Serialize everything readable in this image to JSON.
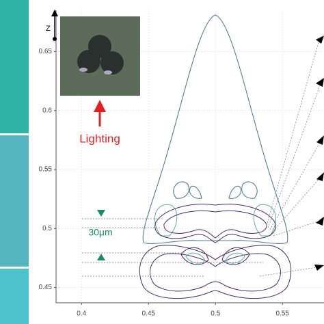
{
  "chart_data": {
    "type": "contour",
    "y_label": "Z",
    "annotations": [
      "Lighting",
      "30μm"
    ],
    "xlim": [
      0.381,
      0.581
    ],
    "ylim": [
      0.437,
      0.685
    ],
    "xticks": [
      0.4,
      0.45,
      0.5,
      0.55
    ],
    "yticks": [
      0.45,
      0.5,
      0.55,
      0.6,
      0.65
    ],
    "grid": true
  }
}
